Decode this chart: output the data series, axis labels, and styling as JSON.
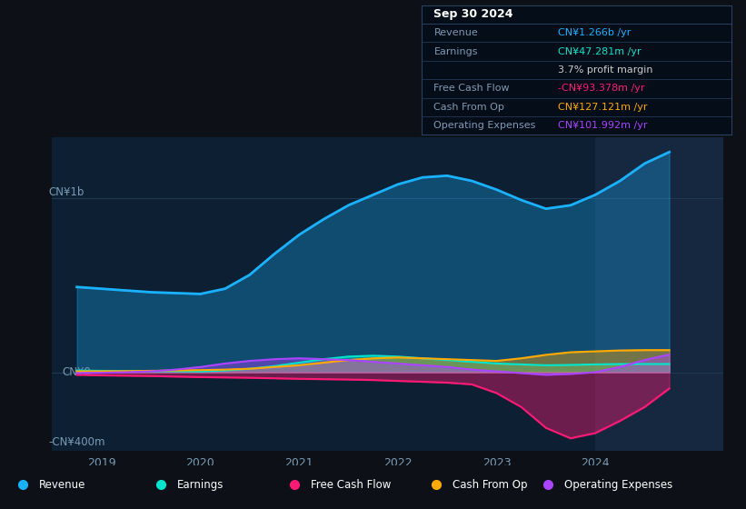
{
  "bg_color": "#0d1117",
  "plot_bg_color": "#0d1f33",
  "x_ticks": [
    2019,
    2020,
    2021,
    2022,
    2023,
    2024
  ],
  "x_range_start": 2018.5,
  "x_range_end": 2025.3,
  "y_range_min": -450000000,
  "y_range_max": 1350000000,
  "revenue_color": "#1ab2ff",
  "earnings_color": "#00e5cc",
  "fcf_color": "#ff1a75",
  "cashfromop_color": "#ffaa00",
  "opex_color": "#aa44ff",
  "gridline_color": "#1e3a52",
  "tick_color": "#7a9bb5",
  "forecast_shade_color": "#162840",
  "forecast_start_x": 2024.0,
  "y_label_top": "CN¥1b",
  "y_label_zero": "CN¥0",
  "y_label_bottom": "-CN¥400m",
  "x_data": [
    2018.75,
    2019.0,
    2019.25,
    2019.5,
    2019.75,
    2020.0,
    2020.25,
    2020.5,
    2020.75,
    2021.0,
    2021.25,
    2021.5,
    2021.75,
    2022.0,
    2022.25,
    2022.5,
    2022.75,
    2023.0,
    2023.25,
    2023.5,
    2023.75,
    2024.0,
    2024.25,
    2024.5,
    2024.75
  ],
  "revenue": [
    490000000,
    480000000,
    470000000,
    460000000,
    455000000,
    450000000,
    480000000,
    560000000,
    680000000,
    790000000,
    880000000,
    960000000,
    1020000000,
    1080000000,
    1120000000,
    1130000000,
    1100000000,
    1050000000,
    990000000,
    940000000,
    960000000,
    1020000000,
    1100000000,
    1200000000,
    1266000000
  ],
  "earnings": [
    10000000,
    8000000,
    7000000,
    6000000,
    5000000,
    4000000,
    10000000,
    20000000,
    35000000,
    55000000,
    75000000,
    90000000,
    95000000,
    90000000,
    80000000,
    70000000,
    60000000,
    50000000,
    45000000,
    40000000,
    42000000,
    45000000,
    47000000,
    47281000,
    47281000
  ],
  "fcf": [
    -15000000,
    -18000000,
    -20000000,
    -22000000,
    -25000000,
    -28000000,
    -30000000,
    -32000000,
    -35000000,
    -38000000,
    -40000000,
    -42000000,
    -45000000,
    -50000000,
    -55000000,
    -60000000,
    -70000000,
    -120000000,
    -200000000,
    -320000000,
    -380000000,
    -350000000,
    -280000000,
    -200000000,
    -93378000
  ],
  "cashfromop": [
    5000000,
    5000000,
    6000000,
    8000000,
    10000000,
    12000000,
    15000000,
    20000000,
    30000000,
    40000000,
    55000000,
    70000000,
    80000000,
    85000000,
    80000000,
    75000000,
    70000000,
    65000000,
    80000000,
    100000000,
    115000000,
    120000000,
    125000000,
    127121000,
    127121000
  ],
  "opex": [
    -5000000,
    -3000000,
    0,
    5000000,
    15000000,
    30000000,
    50000000,
    65000000,
    75000000,
    80000000,
    75000000,
    70000000,
    60000000,
    50000000,
    40000000,
    30000000,
    15000000,
    5000000,
    -5000000,
    -15000000,
    -10000000,
    0,
    30000000,
    70000000,
    101992000
  ],
  "legend": [
    {
      "label": "Revenue",
      "color": "#1ab2ff"
    },
    {
      "label": "Earnings",
      "color": "#00e5cc"
    },
    {
      "label": "Free Cash Flow",
      "color": "#ff1a75"
    },
    {
      "label": "Cash From Op",
      "color": "#ffaa00"
    },
    {
      "label": "Operating Expenses",
      "color": "#aa44ff"
    }
  ],
  "info_box_title": "Sep 30 2024",
  "info_rows": [
    {
      "label": "Revenue",
      "value": "CN¥1.266b /yr",
      "value_color": "#1ab2ff"
    },
    {
      "label": "Earnings",
      "value": "CN¥47.281m /yr",
      "value_color": "#00e5cc"
    },
    {
      "label": "",
      "value": "3.7% profit margin",
      "value_color": "#cccccc"
    },
    {
      "label": "Free Cash Flow",
      "value": "-CN¥93.378m /yr",
      "value_color": "#ff1a75"
    },
    {
      "label": "Cash From Op",
      "value": "CN¥127.121m /yr",
      "value_color": "#ffaa00"
    },
    {
      "label": "Operating Expenses",
      "value": "CN¥101.992m /yr",
      "value_color": "#aa44ff"
    }
  ]
}
